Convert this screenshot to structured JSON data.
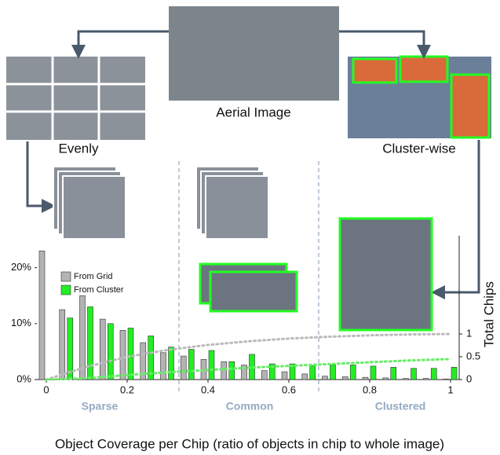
{
  "diagram": {
    "source_label": "Aerial Image",
    "evenly_label": "Evenly",
    "cluster_label": "Cluster-wise"
  },
  "chart_data": {
    "type": "bar",
    "x_label": "Object Coverage per Chip (ratio of objects in chip to whole image)",
    "y2_label": "Total Chips",
    "regions": [
      "Sparse",
      "Common",
      "Clustered"
    ],
    "x": [
      0,
      0.05,
      0.1,
      0.15,
      0.2,
      0.25,
      0.3,
      0.35,
      0.4,
      0.45,
      0.5,
      0.55,
      0.6,
      0.65,
      0.7,
      0.75,
      0.8,
      0.85,
      0.9,
      0.95,
      1
    ],
    "series": [
      {
        "name": "From Grid",
        "color": "#b3b3b3",
        "values": [
          23,
          12.5,
          15,
          10.8,
          8.8,
          6.6,
          4.8,
          4.2,
          3.6,
          3.2,
          2.6,
          1.6,
          1.4,
          1.0,
          0.6,
          0.5,
          0.4,
          0.3,
          0.2,
          0.2,
          0.1
        ]
      },
      {
        "name": "From Cluster",
        "color": "#22ee22",
        "values": [
          0,
          11,
          13,
          10,
          9.2,
          7.8,
          5.8,
          5.4,
          5.2,
          3.2,
          4.5,
          2.8,
          2.8,
          2.5,
          2.6,
          2.6,
          2.4,
          2.2,
          2.0,
          2.0,
          2.2
        ]
      },
      {
        "type": "line",
        "axis": "y2",
        "color": "#bbbbbb",
        "x": [
          0,
          0.1,
          0.2,
          0.3,
          0.4,
          0.5,
          0.6,
          0.7,
          0.8,
          0.9,
          1
        ],
        "values": [
          0,
          0.28,
          0.5,
          0.65,
          0.76,
          0.84,
          0.9,
          0.94,
          0.97,
          0.99,
          1
        ]
      },
      {
        "type": "line",
        "axis": "y2",
        "color": "#66ee66",
        "x": [
          0,
          0.1,
          0.2,
          0.3,
          0.4,
          0.5,
          0.6,
          0.7,
          0.8,
          0.9,
          1
        ],
        "values": [
          0,
          0.03,
          0.1,
          0.16,
          0.21,
          0.26,
          0.3,
          0.34,
          0.38,
          0.42,
          0.45
        ]
      }
    ],
    "xlim": [
      0,
      1
    ],
    "xticks": [
      0,
      0.2,
      0.4,
      0.6,
      0.8,
      1
    ],
    "ylim": [
      0,
      25
    ],
    "yticks": [
      {
        "value": 0,
        "label": "0%"
      },
      {
        "value": 10,
        "label": "10%"
      },
      {
        "value": 20,
        "label": "20%"
      }
    ],
    "y2lim": [
      0,
      3
    ],
    "y2ticks": [
      0,
      0.5,
      1
    ],
    "legend": "upper left"
  }
}
